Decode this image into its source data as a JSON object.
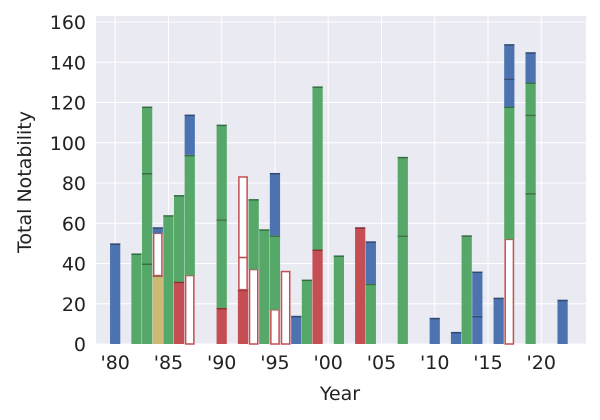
{
  "chart_data": {
    "type": "bar",
    "xlabel": "Year",
    "ylabel": "Total Notability",
    "xlim": [
      1978.2,
      2024.2
    ],
    "ylim": [
      0,
      163
    ],
    "grid": true,
    "x_tick_labels": [
      "'80",
      "'85",
      "'90",
      "'95",
      "'00",
      "'05",
      "'10",
      "'15",
      "'20"
    ],
    "x_tick_years": [
      1980,
      1985,
      1990,
      1995,
      2000,
      2005,
      2010,
      2015,
      2020
    ],
    "y_ticks": [
      0,
      20,
      40,
      60,
      80,
      100,
      120,
      140,
      160
    ],
    "y_tick_labels": [
      "0",
      "20",
      "40",
      "60",
      "80",
      "100",
      "120",
      "140",
      "160"
    ],
    "colors": {
      "background": "#eaeaf2",
      "blue": "#4c72b0",
      "green": "#55a868",
      "red": "#c44e52",
      "gold": "#ccb974",
      "hollow_fill": "#ffffff",
      "grid": "#ffffff"
    },
    "stacks": [
      {
        "year": 1980,
        "segments": [
          {
            "color": "blue",
            "value": 50
          }
        ]
      },
      {
        "year": 1982,
        "segments": [
          {
            "color": "green",
            "value": 45
          }
        ]
      },
      {
        "year": 1983,
        "segments": [
          {
            "color": "green",
            "value": 40
          },
          {
            "color": "green",
            "value": 45
          },
          {
            "color": "green",
            "value": 33
          }
        ]
      },
      {
        "year": 1984,
        "segments": [
          {
            "color": "gold",
            "value": 34
          },
          {
            "color": "hollow",
            "value": 21
          },
          {
            "color": "blue",
            "value": 3
          }
        ]
      },
      {
        "year": 1985,
        "segments": [
          {
            "color": "green",
            "value": 64
          }
        ]
      },
      {
        "year": 1986,
        "segments": [
          {
            "color": "red",
            "value": 31
          },
          {
            "color": "green",
            "value": 43
          }
        ]
      },
      {
        "year": 1987,
        "segments": [
          {
            "color": "hollow",
            "value": 34
          },
          {
            "color": "green",
            "value": 60
          },
          {
            "color": "blue",
            "value": 20
          }
        ]
      },
      {
        "year": 1990,
        "segments": [
          {
            "color": "red",
            "value": 18
          },
          {
            "color": "green",
            "value": 44
          },
          {
            "color": "green",
            "value": 47
          }
        ]
      },
      {
        "year": 1992,
        "segments": [
          {
            "color": "red",
            "value": 27
          },
          {
            "color": "hollow",
            "value": 16
          },
          {
            "color": "hollow",
            "value": 40
          }
        ]
      },
      {
        "year": 1993,
        "segments": [
          {
            "color": "hollow",
            "value": 37
          },
          {
            "color": "green",
            "value": 35
          }
        ]
      },
      {
        "year": 1994,
        "segments": [
          {
            "color": "green",
            "value": 57
          }
        ]
      },
      {
        "year": 1995,
        "segments": [
          {
            "color": "hollow",
            "value": 17
          },
          {
            "color": "green",
            "value": 37
          },
          {
            "color": "blue",
            "value": 31
          }
        ]
      },
      {
        "year": 1996,
        "segments": [
          {
            "color": "hollow",
            "value": 36
          }
        ]
      },
      {
        "year": 1997,
        "segments": [
          {
            "color": "blue",
            "value": 14
          }
        ]
      },
      {
        "year": 1998,
        "segments": [
          {
            "color": "green",
            "value": 32
          }
        ]
      },
      {
        "year": 1999,
        "segments": [
          {
            "color": "red",
            "value": 47
          },
          {
            "color": "green",
            "value": 81
          }
        ]
      },
      {
        "year": 2001,
        "segments": [
          {
            "color": "green",
            "value": 44
          }
        ]
      },
      {
        "year": 2003,
        "segments": [
          {
            "color": "red",
            "value": 58
          }
        ]
      },
      {
        "year": 2004,
        "segments": [
          {
            "color": "green",
            "value": 30
          },
          {
            "color": "blue",
            "value": 21
          }
        ]
      },
      {
        "year": 2007,
        "segments": [
          {
            "color": "green",
            "value": 54
          },
          {
            "color": "green",
            "value": 39
          }
        ]
      },
      {
        "year": 2010,
        "segments": [
          {
            "color": "blue",
            "value": 13
          }
        ]
      },
      {
        "year": 2012,
        "segments": [
          {
            "color": "blue",
            "value": 6
          }
        ]
      },
      {
        "year": 2013,
        "segments": [
          {
            "color": "green",
            "value": 54
          }
        ]
      },
      {
        "year": 2014,
        "segments": [
          {
            "color": "blue",
            "value": 14
          },
          {
            "color": "blue",
            "value": 22
          }
        ]
      },
      {
        "year": 2016,
        "segments": [
          {
            "color": "blue",
            "value": 23
          }
        ]
      },
      {
        "year": 2017,
        "segments": [
          {
            "color": "hollow",
            "value": 52
          },
          {
            "color": "green",
            "value": 66
          },
          {
            "color": "blue",
            "value": 14
          },
          {
            "color": "blue",
            "value": 17
          }
        ]
      },
      {
        "year": 2019,
        "segments": [
          {
            "color": "green",
            "value": 75
          },
          {
            "color": "green",
            "value": 39
          },
          {
            "color": "green",
            "value": 16
          },
          {
            "color": "blue",
            "value": 15
          }
        ]
      },
      {
        "year": 2022,
        "segments": [
          {
            "color": "blue",
            "value": 22
          }
        ]
      }
    ]
  }
}
